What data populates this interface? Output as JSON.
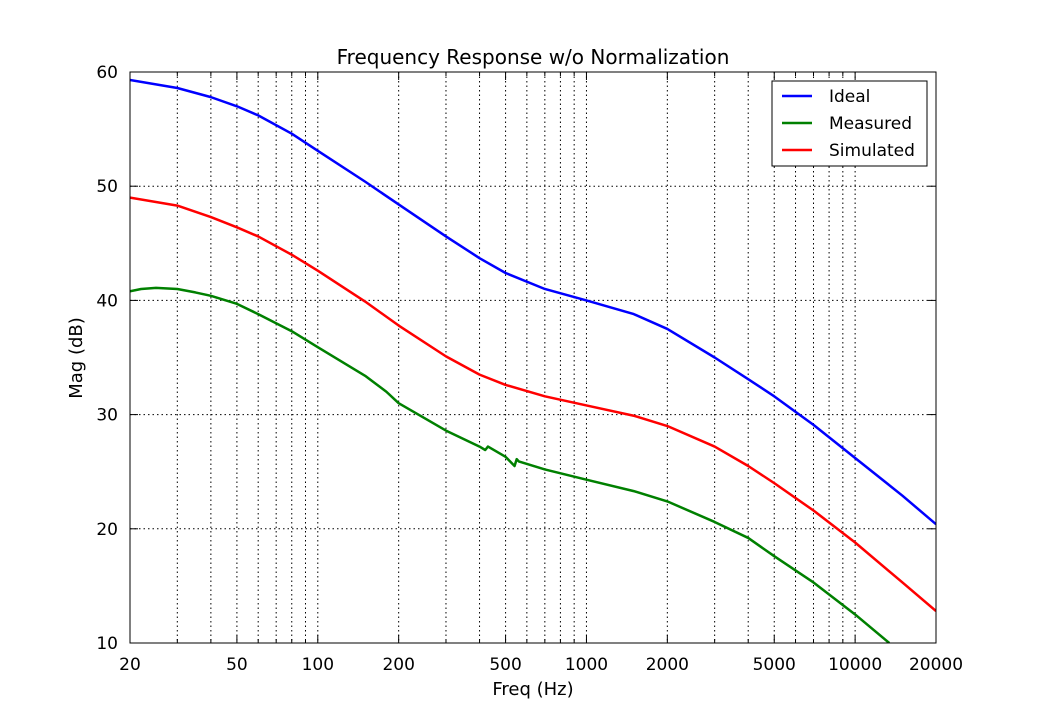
{
  "chart_data": {
    "type": "line",
    "title": "Frequency Response w/o Normalization",
    "xlabel": "Freq (Hz)",
    "ylabel": "Mag (dB)",
    "xscale": "log",
    "xlim": [
      20,
      20000
    ],
    "ylim": [
      10,
      60
    ],
    "grid": true,
    "grid_style": "dotted",
    "legend_position": "top-right",
    "x_tick_labels": [
      "20",
      "50",
      "100",
      "200",
      "500",
      "1000",
      "2000",
      "5000",
      "10000",
      "20000"
    ],
    "x_tick_values": [
      20,
      50,
      100,
      200,
      500,
      1000,
      2000,
      5000,
      10000,
      20000
    ],
    "x_minor_grid_values": [
      30,
      40,
      60,
      70,
      80,
      90,
      300,
      400,
      600,
      700,
      800,
      900,
      3000,
      4000,
      6000,
      7000,
      8000,
      9000
    ],
    "y_tick_labels": [
      "10",
      "20",
      "30",
      "40",
      "50",
      "60"
    ],
    "y_tick_values": [
      10,
      20,
      30,
      40,
      50,
      60
    ],
    "series": [
      {
        "name": "Ideal",
        "color": "#0000ff",
        "x": [
          20,
          30,
          40,
          50,
          60,
          80,
          100,
          150,
          200,
          300,
          400,
          500,
          700,
          1000,
          1500,
          2000,
          3000,
          4000,
          5000,
          7000,
          10000,
          15000,
          20000
        ],
        "y": [
          59.3,
          58.6,
          57.8,
          57.0,
          56.2,
          54.6,
          53.1,
          50.4,
          48.4,
          45.6,
          43.7,
          42.4,
          41.0,
          40.0,
          38.8,
          37.5,
          35.0,
          33.1,
          31.6,
          29.1,
          26.2,
          22.9,
          20.4
        ]
      },
      {
        "name": "Measured",
        "color": "#008000",
        "x": [
          20,
          22,
          25,
          30,
          35,
          40,
          50,
          60,
          80,
          100,
          150,
          180,
          200,
          300,
          400,
          420,
          430,
          500,
          540,
          550,
          560,
          700,
          1000,
          1500,
          2000,
          3000,
          4000,
          5000,
          7000,
          10000,
          13400
        ],
        "y": [
          40.8,
          41.0,
          41.1,
          41.0,
          40.7,
          40.4,
          39.7,
          38.8,
          37.3,
          35.9,
          33.4,
          32.0,
          31.0,
          28.6,
          27.2,
          26.9,
          27.2,
          26.3,
          25.5,
          26.1,
          25.9,
          25.2,
          24.3,
          23.3,
          22.4,
          20.6,
          19.2,
          17.6,
          15.3,
          12.5,
          10.0
        ]
      },
      {
        "name": "Simulated",
        "color": "#ff0000",
        "x": [
          20,
          30,
          40,
          50,
          60,
          80,
          100,
          150,
          200,
          300,
          400,
          500,
          700,
          1000,
          1500,
          2000,
          3000,
          4000,
          5000,
          7000,
          10000,
          15000,
          20000
        ],
        "y": [
          49.0,
          48.3,
          47.3,
          46.4,
          45.6,
          44.0,
          42.6,
          39.9,
          37.8,
          35.1,
          33.5,
          32.6,
          31.6,
          30.8,
          29.9,
          29.0,
          27.2,
          25.5,
          24.0,
          21.6,
          18.8,
          15.3,
          12.8
        ]
      }
    ]
  }
}
